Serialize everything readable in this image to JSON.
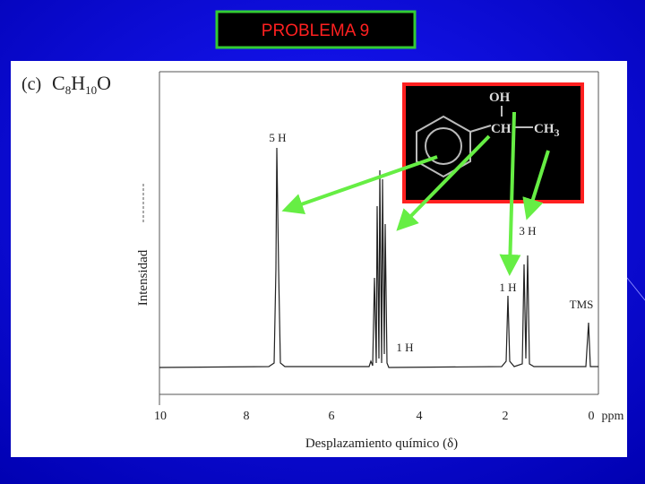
{
  "header": {
    "title": "PROBLEMA 9"
  },
  "spectrum": {
    "label": "(c)",
    "formula": [
      "C",
      "8",
      "H",
      "10",
      "O"
    ],
    "y_axis_label": "Intensidad",
    "x_axis_label": "Desplazamiento químico (δ)",
    "x_ticks": [
      "10",
      "8",
      "6",
      "4",
      "2",
      "0"
    ],
    "x_unit": "ppm",
    "peak_labels": [
      "5 H",
      "1 H",
      "1 H",
      "3 H",
      "TMS"
    ]
  },
  "structure": {
    "oh": "OH",
    "ch": "CH",
    "ch3": [
      "CH",
      "3"
    ]
  }
}
